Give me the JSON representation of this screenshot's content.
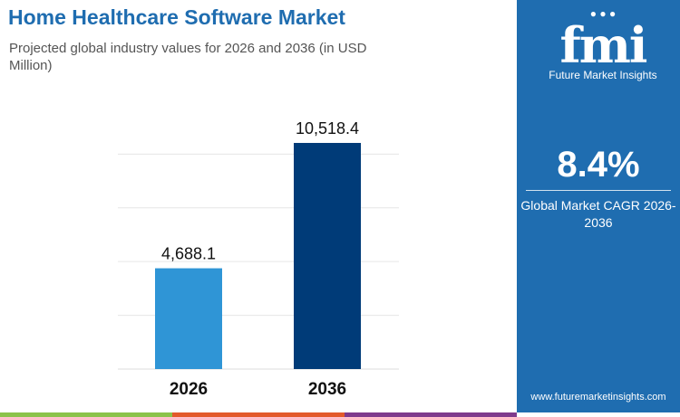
{
  "title": "Home Healthcare Software Market",
  "subtitle": "Projected global industry values for 2026 and 2036 (in USD Million)",
  "side_panel": {
    "logo_text": "fmi",
    "logo_name": "Future Market Insights",
    "cagr_value": "8.4%",
    "cagr_label": "Global Market CAGR 2026- 2036",
    "url": "www.futuremarketinsights.com"
  },
  "colors": {
    "brand": "#1f6db0",
    "bar_2026": "#2f95d6",
    "bar_2036": "#003b78",
    "stripe": [
      "#8bc34a",
      "#e35a2b",
      "#7e3a8c"
    ]
  },
  "chart_data": {
    "type": "bar",
    "categories": [
      "2026",
      "2036"
    ],
    "values": [
      4688.1,
      10518.4
    ],
    "value_labels": [
      "4,688.1",
      "10,518.4"
    ],
    "ylim": [
      0,
      10518.4
    ],
    "gridlines": [
      2500,
      5000,
      7500,
      10000
    ],
    "grid": true,
    "xlabel": "",
    "ylabel": ""
  }
}
